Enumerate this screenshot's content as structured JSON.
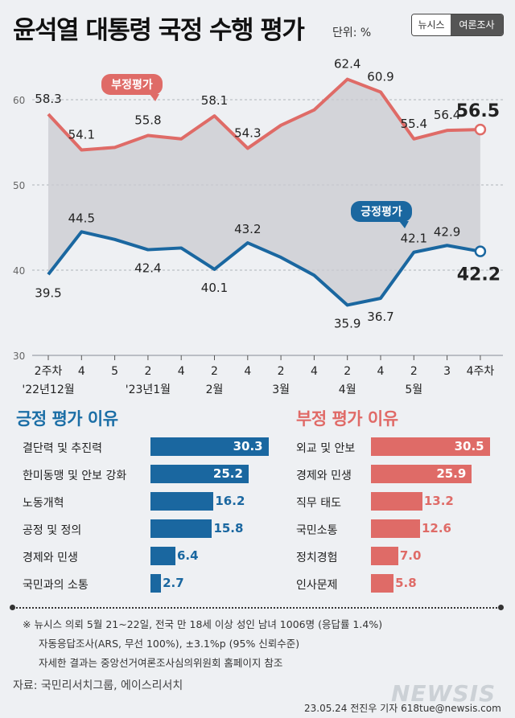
{
  "header": {
    "title": "윤석열 대통령 국정 수행 평가",
    "unit": "단위: %",
    "badge_left": "뉴시스",
    "badge_right": "여론조사"
  },
  "chart_data": {
    "type": "line",
    "title": "윤석열 대통령 국정 수행 평가",
    "y_ticks": [
      "60",
      "50",
      "40",
      "30"
    ],
    "ylim": [
      30,
      65
    ],
    "x_ticks": [
      "2주차",
      "4",
      "5",
      "2",
      "4",
      "2",
      "4",
      "2",
      "4",
      "2",
      "4",
      "2",
      "3",
      "4주차"
    ],
    "x_groups": [
      {
        "label": "'22년12월",
        "index": 0
      },
      {
        "label": "'23년1월",
        "index": 3
      },
      {
        "label": "2월",
        "index": 5
      },
      {
        "label": "3월",
        "index": 7
      },
      {
        "label": "4월",
        "index": 9
      },
      {
        "label": "5월",
        "index": 11
      }
    ],
    "series": [
      {
        "name": "부정평가",
        "color": "#df6b67",
        "values": [
          58.3,
          54.1,
          54.4,
          55.8,
          55.4,
          58.1,
          54.3,
          57.0,
          58.8,
          62.4,
          60.9,
          55.4,
          56.4,
          56.5
        ],
        "labels": [
          "58.3",
          "54.1",
          "",
          "55.8",
          "",
          "58.1",
          "54.3",
          "",
          "",
          "62.4",
          "60.9",
          "55.4",
          "56.4",
          "56.5"
        ]
      },
      {
        "name": "긍정평가",
        "color": "#1a67a0",
        "values": [
          39.5,
          44.5,
          43.6,
          42.4,
          42.6,
          40.1,
          43.2,
          41.5,
          39.4,
          35.9,
          36.7,
          42.1,
          42.9,
          42.2
        ],
        "labels": [
          "39.5",
          "44.5",
          "",
          "42.4",
          "",
          "40.1",
          "43.2",
          "",
          "",
          "35.9",
          "36.7",
          "42.1",
          "42.9",
          "42.2"
        ]
      }
    ]
  },
  "positive_reasons": {
    "title": "긍정 평가 이유",
    "items": [
      {
        "label": "결단력 및 추진력",
        "value": 30.3
      },
      {
        "label": "한미동맹 및 안보 강화",
        "value": 25.2
      },
      {
        "label": "노동개혁",
        "value": 16.2
      },
      {
        "label": "공정 및 정의",
        "value": 15.8
      },
      {
        "label": "경제와 민생",
        "value": 6.4
      },
      {
        "label": "국민과의 소통",
        "value": 2.7
      }
    ]
  },
  "negative_reasons": {
    "title": "부정 평가 이유",
    "items": [
      {
        "label": "외교 및 안보",
        "value": 30.5
      },
      {
        "label": "경제와 민생",
        "value": 25.9
      },
      {
        "label": "직무 태도",
        "value": 13.2
      },
      {
        "label": "국민소통",
        "value": 12.6
      },
      {
        "label": "정치경험",
        "value": 7.0
      },
      {
        "label": "인사문제",
        "value": 5.8
      }
    ]
  },
  "notes": [
    "※ 뉴시스 의뢰 5월 21~22일, 전국 만 18세 이상 성인 남녀 1006명 (응답률 1.4%)",
    "자동응답조사(ARS, 무선 100%), ±3.1%p (95% 신뢰수준)",
    "자세한 결과는 중앙선거여론조사심의위원회 홈페이지 참조"
  ],
  "source": "자료: 국민리서치그룹, 에이스리서치",
  "credit": "23.05.24 전진우 기자 618tue@newsis.com",
  "watermark": "NEWSIS"
}
